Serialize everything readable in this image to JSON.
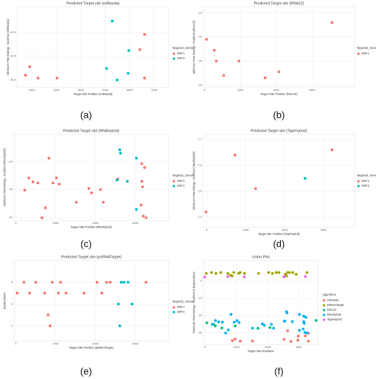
{
  "chart_data": [
    {
      "type": "scatter",
      "title": "Predicted Target site (miRanda)",
      "xlabel": "Target Site Position (miRanda)",
      "ylabel": "Minimum Free Energy - kcal/mol (miRanda)",
      "xlim": [
        1400,
        7600
      ],
      "ylim": [
        -35.8,
        -27.3
      ],
      "xticks": [
        2000,
        3000,
        4000,
        5000,
        6000,
        7000
      ],
      "yticks": [
        {
          "value": -30,
          "label": "-30.0"
        },
        -32.5,
        {
          "value": -35,
          "label": "-35.0"
        }
      ],
      "grid": true,
      "legend_title": "Targeted_Genes",
      "panel_label": "(a)",
      "series": [
        {
          "name": "ORF1",
          "color": "#f8766d",
          "x": [
            1740,
            1910,
            2250,
            3030,
            6420,
            6610,
            6610
          ],
          "values": [
            -34.5,
            -33.6,
            -34.8,
            -34.8,
            -31.8,
            -30.2,
            -34.8
          ]
        },
        {
          "name": "ORF2",
          "color": "#00bfc4",
          "x": [
            5290,
            5060,
            5970,
            5940,
            5490
          ],
          "values": [
            -28.8,
            -33.8,
            -31.9,
            -34.3,
            -35.0
          ]
        }
      ]
    },
    {
      "type": "scatter",
      "title": "Predicted Target site (RNA22)",
      "xlabel": "Target Site Position (RNA22)",
      "ylabel": "Minimum Free Energy - kcal/mol (RNA22)",
      "xlim": [
        -80,
        8380
      ],
      "ylim": [
        -28.2,
        -21.5
      ],
      "xticks": [
        0,
        2000,
        4000,
        6000
      ],
      "yticks": [
        -22,
        -24,
        -26,
        -28
      ],
      "grid": true,
      "legend_title": "Targeted_Genes",
      "panel_label": "(b)",
      "series": [
        {
          "name": "ORF1",
          "color": "#f8766d",
          "x": [
            110,
            540,
            650,
            1070,
            1920,
            3380,
            4150,
            7110
          ],
          "values": [
            -24.2,
            -25.1,
            -26.0,
            -27.2,
            -26.0,
            -27.4,
            -26.9,
            -22.8
          ]
        }
      ]
    },
    {
      "type": "scatter",
      "title": "Predicted Target site (RNAhybrid)",
      "xlabel": "Target Site Position (RNAhybrid)",
      "ylabel": "Minimum Free Energy - kcal/mol (RNAhybrid)",
      "xlim": [
        -100,
        7660
      ],
      "ylim": [
        -30.6,
        -15
      ],
      "xticks": [
        0,
        2000,
        4000,
        6000
      ],
      "yticks": [
        -20,
        -25,
        -30
      ],
      "grid": true,
      "legend_title": "Targeted_Genes",
      "panel_label": "(c)",
      "series": [
        {
          "name": "ORF1",
          "color": "#f8766d",
          "x": [
            449,
            656,
            863,
            1104,
            1311,
            1484,
            1656,
            1863,
            2036,
            2174,
            3036,
            3657,
            3795,
            4244,
            4382,
            5106,
            6314,
            6452,
            6314,
            6348,
            6279,
            6383,
            6521
          ],
          "values": [
            -25.1,
            -22.9,
            -23.6,
            -23.8,
            -30.1,
            -28.3,
            -19.3,
            -23.8,
            -22.9,
            -24.0,
            -27.3,
            -24.8,
            -25.6,
            -25.0,
            -27.3,
            -23.1,
            -20.3,
            -21.0,
            -23.5,
            -24.5,
            -27.8,
            -29.8,
            -30.1
          ]
        },
        {
          "name": "ORF2",
          "color": "#00bfc4",
          "x": [
            5210,
            5244,
            6038,
            5072,
            5589,
            6038
          ],
          "values": [
            -17.8,
            -18.4,
            -19.3,
            -23.3,
            -23.5,
            -28.6
          ]
        }
      ]
    },
    {
      "type": "scatter",
      "title": "Predicted Target site (Tapirhybrid)",
      "xlabel": "Target Site Position (Tapirhybrid)",
      "ylabel": "Minimum Free Energy - kcal/mol (Tapirhybrid)",
      "xlim": [
        -180,
        7590
      ],
      "ylim": [
        2.36,
        2.72
      ],
      "xticks": [
        0,
        2000,
        4000,
        6000
      ],
      "yticks": [
        2.4,
        2.5,
        2.6,
        2.7
      ],
      "grid": true,
      "legend_title": "Targeted_Genes",
      "panel_label": "(d)",
      "series": [
        {
          "name": "ORF1",
          "color": "#f8766d",
          "x": [
            -35,
            1447,
            2506,
            6425
          ],
          "values": [
            2.42,
            2.64,
            2.51,
            2.66
          ]
        },
        {
          "name": "ORF2",
          "color": "#00bfc4",
          "x": [
            5048
          ],
          "values": [
            2.55
          ]
        }
      ]
    },
    {
      "type": "scatter",
      "title": "Predicted Target site (psRNATarget)",
      "xlabel": "Target Site Position (psRNATarget)",
      "ylabel": "Expectations",
      "xlim": [
        -100,
        7660
      ],
      "ylim": [
        2.3,
        6
      ],
      "xticks": [
        0,
        2000,
        4000,
        6000
      ],
      "yticks": [
        3,
        4,
        5
      ],
      "grid": true,
      "legend_title": "Targeted_Genes",
      "panel_label": "(e)",
      "series": [
        {
          "name": "ORF1",
          "color": "#f8766d",
          "x": [
            70,
            410,
            690,
            1000,
            1450,
            1620,
            1720,
            1830,
            2140,
            2240,
            2520,
            3420,
            4070,
            4310,
            4550,
            4730,
            6520
          ],
          "values": [
            4.5,
            5,
            4.5,
            5,
            4.5,
            3.5,
            3,
            5,
            4.5,
            5,
            4.5,
            4.5,
            5,
            4.5,
            5,
            5,
            5
          ]
        },
        {
          "name": "ORF2",
          "color": "#00bfc4",
          "x": [
            5280,
            5420,
            5620,
            5140,
            5210,
            5830
          ],
          "values": [
            5,
            5,
            5,
            4,
            3,
            4
          ]
        }
      ]
    },
    {
      "type": "scatter",
      "title": "Union Plot",
      "xlabel": "Target Site Positions",
      "ylabel": "Minimum Free Energy - kcal/mol & Expectations",
      "xlim": [
        -130,
        7240
      ],
      "ylim": [
        -36.8,
        12
      ],
      "xticks": [
        0,
        2000,
        4000,
        6000
      ],
      "yticks": [
        0,
        -10,
        -20,
        -30
      ],
      "grid": true,
      "legend_title": "Algorithms",
      "panel_label": "(f)",
      "series": [
        {
          "name": "miRanda",
          "color": "#f8766d",
          "x": [
            1740,
            1910,
            2250,
            3030,
            6420,
            6610,
            6610,
            5290,
            5060,
            5970,
            5940,
            5490
          ],
          "values": [
            -34.5,
            -33.6,
            -34.8,
            -34.8,
            -31.8,
            -30.2,
            -34.8,
            -28.8,
            -33.8,
            -31.9,
            -34.3,
            -35.0
          ]
        },
        {
          "name": "psRNATarget",
          "color": "#a3a500",
          "x": [
            70,
            410,
            690,
            1000,
            1450,
            1620,
            1720,
            1830,
            2140,
            2240,
            2520,
            3420,
            4070,
            4310,
            4550,
            4730,
            6520,
            5280,
            5420,
            5620,
            5140,
            5210,
            5830
          ],
          "values": [
            4.5,
            5,
            4.5,
            5,
            4.5,
            3.5,
            3,
            5,
            4.5,
            5,
            4.5,
            4.5,
            5,
            4.5,
            5,
            5,
            5,
            5,
            5,
            5,
            4,
            3,
            4
          ]
        },
        {
          "name": "RNA22",
          "color": "#00bf7d",
          "x": [
            110,
            540,
            650,
            1070,
            1920,
            3380,
            4150,
            7110
          ],
          "values": [
            -24.2,
            -25.1,
            -26.0,
            -27.2,
            -26.0,
            -27.4,
            -26.9,
            -22.8
          ]
        },
        {
          "name": "RNAhybrid",
          "color": "#00b0f6",
          "x": [
            449,
            656,
            863,
            1104,
            1311,
            1484,
            1656,
            1863,
            2036,
            2174,
            3036,
            3657,
            3795,
            4244,
            4382,
            5106,
            6314,
            6452,
            6314,
            6348,
            6279,
            6383,
            6521,
            5210,
            5244,
            6038,
            5072,
            5589,
            6038
          ],
          "values": [
            -25.1,
            -22.9,
            -23.6,
            -23.8,
            -30.1,
            -28.3,
            -19.3,
            -23.8,
            -22.9,
            -24.0,
            -27.3,
            -24.8,
            -25.6,
            -25.0,
            -27.3,
            -23.1,
            -20.3,
            -21.0,
            -23.5,
            -24.5,
            -27.8,
            -29.8,
            -30.1,
            -17.8,
            -18.4,
            -19.3,
            -23.3,
            -23.5,
            -28.6
          ]
        },
        {
          "name": "TapirHybrid",
          "color": "#e76bf3",
          "x": [
            -35,
            1447,
            2506,
            6425,
            5048
          ],
          "values": [
            2.42,
            2.64,
            2.51,
            2.66,
            2.55
          ]
        }
      ]
    }
  ]
}
